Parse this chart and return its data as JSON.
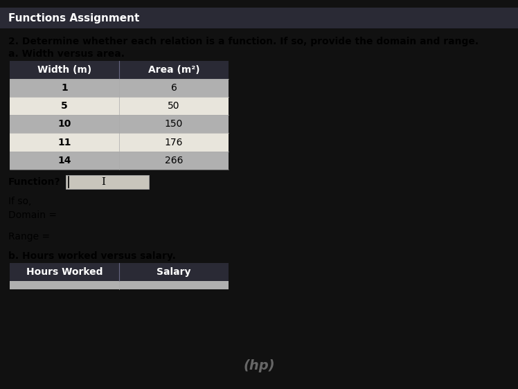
{
  "title_bar_text": "Functions Assignment",
  "title_bar_bg": "#2a2a35",
  "title_bar_fg": "#ffffff",
  "question_text": "2. Determine whether each relation is a function. If so, provide the domain and range.",
  "part_a_label": "a. Width versus area.",
  "table_a_headers": [
    "Width (m)",
    "Area (m²)"
  ],
  "table_a_col1": [
    "1",
    "5",
    "10",
    "11",
    "14"
  ],
  "table_a_col2": [
    "6",
    "50",
    "150",
    "176",
    "266"
  ],
  "header_bg": "#2a2a35",
  "header_fg": "#ffffff",
  "row_bg_dark": "#b0b0b0",
  "row_bg_light": "#e8e5dc",
  "function_label": "Function?",
  "if_so_label": "If so,",
  "domain_label": "Domain =",
  "range_label": "Range =",
  "part_b_label": "b. Hours worked versus salary.",
  "table_b_headers": [
    "Hours Worked",
    "Salary"
  ],
  "page_bg": "#ddd8cc",
  "outer_bg": "#111111",
  "input_box_bg": "#c8c5bc",
  "font_size_title": 11,
  "font_size_question": 10,
  "font_size_table_header": 10,
  "font_size_table_data": 10,
  "font_size_label": 10
}
